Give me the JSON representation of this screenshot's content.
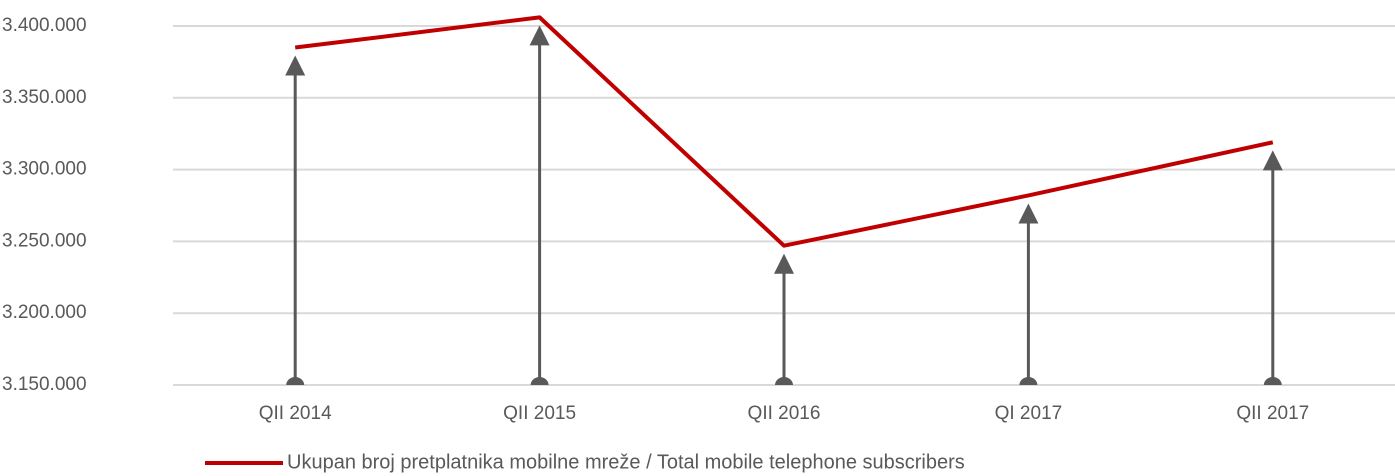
{
  "chart_data": {
    "type": "line",
    "categories": [
      "QII 2014",
      "QII 2015",
      "QII 2016",
      "QI 2017",
      "QII 2017"
    ],
    "series": [
      {
        "name": "Ukupan broj pretplatnika mobilne mreže / Total mobile telephone subscribers",
        "color": "#c00000",
        "values": [
          3385000,
          3406000,
          3247000,
          3282000,
          3319000
        ]
      }
    ],
    "ylim": [
      3150000,
      3400000
    ],
    "yticks": [
      {
        "value": 3150000,
        "label": "3.150.000"
      },
      {
        "value": 3200000,
        "label": "3.200.000"
      },
      {
        "value": 3250000,
        "label": "3.250.000"
      },
      {
        "value": 3300000,
        "label": "3.300.000"
      },
      {
        "value": 3350000,
        "label": "3.350.000"
      },
      {
        "value": 3400000,
        "label": "3.400.000"
      }
    ],
    "grid": true,
    "legend": "bottom",
    "arrow_color": "#595959"
  }
}
